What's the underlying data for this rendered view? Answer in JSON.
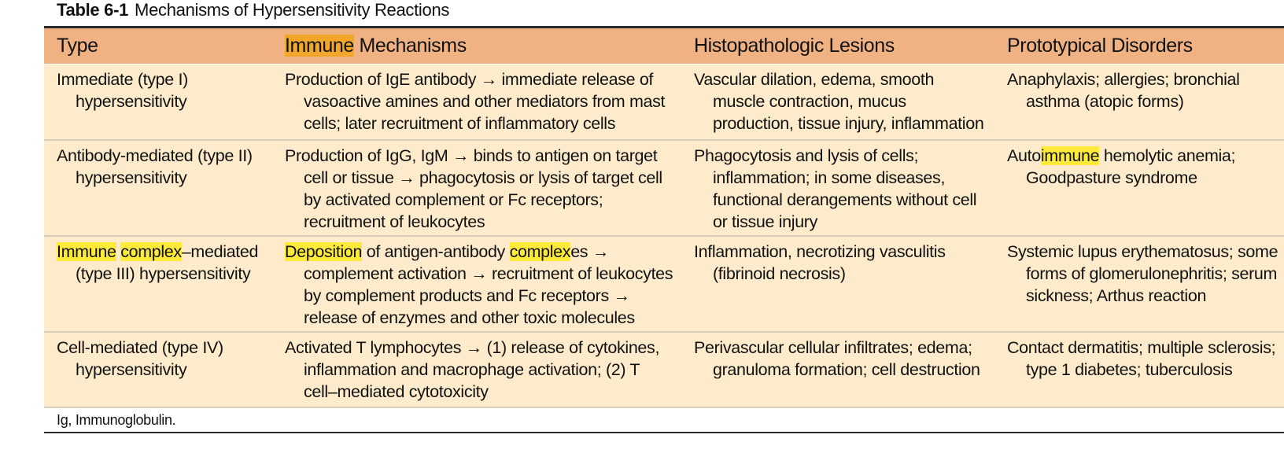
{
  "caption": {
    "number": "Table 6-1",
    "title": "Mechanisms of Hypersensitivity Reactions"
  },
  "columns": {
    "type": "Type",
    "mech_highlight": "Immune",
    "mech_rest": " Mechanisms",
    "lesions": "Histopathologic Lesions",
    "disorders": "Prototypical Disorders"
  },
  "rows": [
    {
      "type": "Immediate (type I) hypersensitivity",
      "mechanism": "Production of IgE antibody → immediate release of vasoactive amines and other mediators from mast cells; later recruitment of inflammatory cells",
      "lesions": "Vascular dilation, edema, smooth muscle contraction, mucus production, tissue injury, inflammation",
      "disorders": "Anaphylaxis; allergies; bronchial asthma (atopic forms)"
    },
    {
      "type": "Antibody-mediated (type II) hypersensitivity",
      "mechanism": "Production of IgG, IgM → binds to antigen on target cell or tissue → phagocytosis or lysis of target cell by activated complement or Fc receptors; recruitment of leukocytes",
      "lesions": "Phagocytosis and lysis of cells; inflammation; in some diseases, functional derangements without cell or tissue injury",
      "disorders_pre": "Auto",
      "disorders_hl": "immune",
      "disorders_post": " hemolytic anemia; Goodpasture syndrome"
    },
    {
      "type_hl1": "Immune",
      "type_sp": " ",
      "type_hl2": "complex",
      "type_post": "–mediated (type III) hypersensitivity",
      "mech_hl1": "Deposition",
      "mech_mid": " of antigen-antibody ",
      "mech_hl2": "complex",
      "mech_post": "es → complement activation → recruitment of leukocytes by complement products and Fc receptors → release of enzymes and other toxic molecules",
      "lesions": "Inflammation, necrotizing vasculitis (fibrinoid necrosis)",
      "disorders": "Systemic lupus erythematosus; some forms of glomerulonephritis; serum sickness; Arthus reaction"
    },
    {
      "type": "Cell-mediated (type IV) hypersensitivity",
      "mechanism": "Activated T lymphocytes → (1) release of cytokines, inflammation and macrophage activation; (2) T cell–mediated cytotoxicity",
      "lesions": "Perivascular cellular infiltrates; edema; granuloma formation; cell destruction",
      "disorders": "Contact dermatitis; multiple sclerosis; type 1 diabetes; tuberculosis"
    }
  ],
  "footnote": "Ig, Immunoglobulin.",
  "colors": {
    "header_bg": "#f0b283",
    "body_bg": "#fdebcb",
    "highlight_orange": "#f2a72a",
    "highlight_yellow": "#fdea3a"
  }
}
